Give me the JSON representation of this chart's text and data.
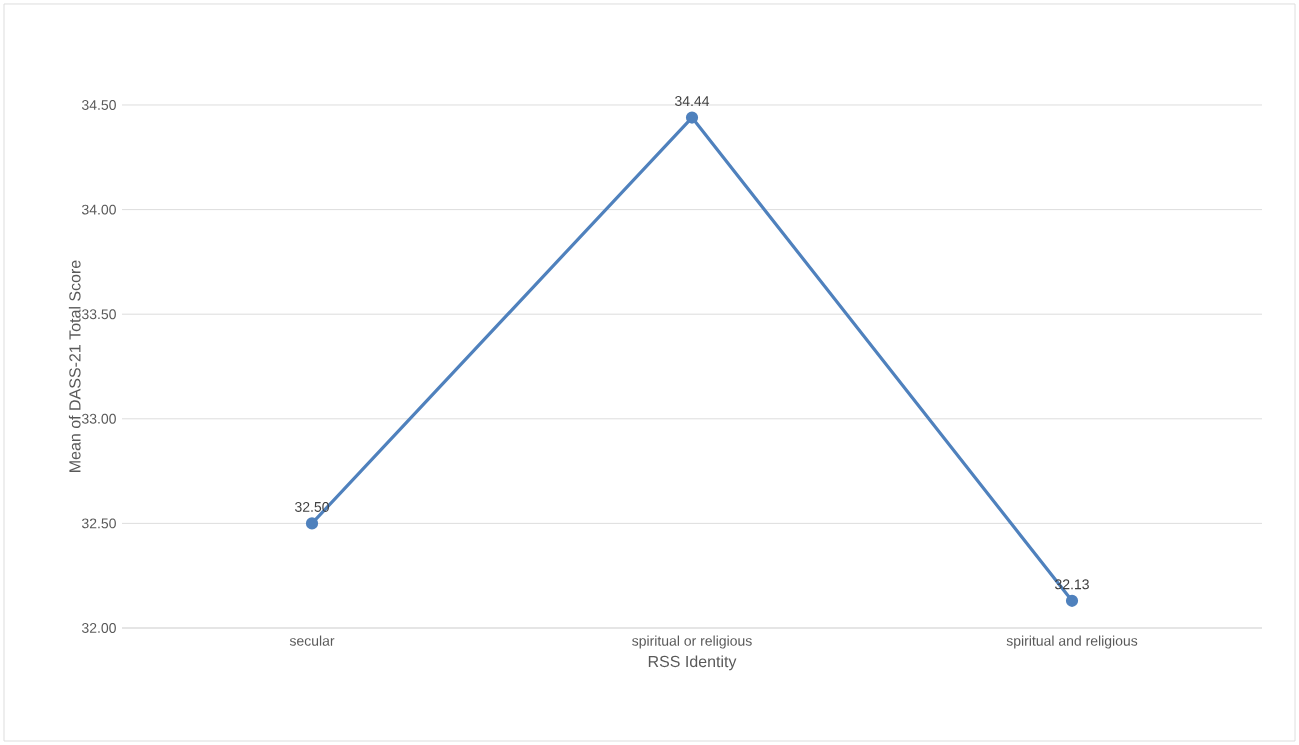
{
  "chart_data": {
    "type": "line",
    "xlabel": "RSS Identity",
    "ylabel": "Mean of DASS-21 Total Score",
    "categories": [
      "secular",
      "spiritual or religious",
      "spiritual and religious"
    ],
    "series": [
      {
        "color": "#4f81bd",
        "values": [
          32.5,
          34.44,
          32.13
        ],
        "value_labels": [
          "32.50",
          "34.44",
          "32.13"
        ]
      }
    ],
    "ylim": [
      32.0,
      34.5
    ],
    "yticks": [
      {
        "value": 32.0,
        "label": "32.00"
      },
      {
        "value": 32.5,
        "label": "32.50"
      },
      {
        "value": 33.0,
        "label": "33.00"
      },
      {
        "value": 33.5,
        "label": "33.50"
      },
      {
        "value": 34.0,
        "label": "34.00"
      },
      {
        "value": 34.5,
        "label": "34.50"
      }
    ],
    "grid": "y",
    "marker": "circle",
    "line_style": "solid"
  }
}
